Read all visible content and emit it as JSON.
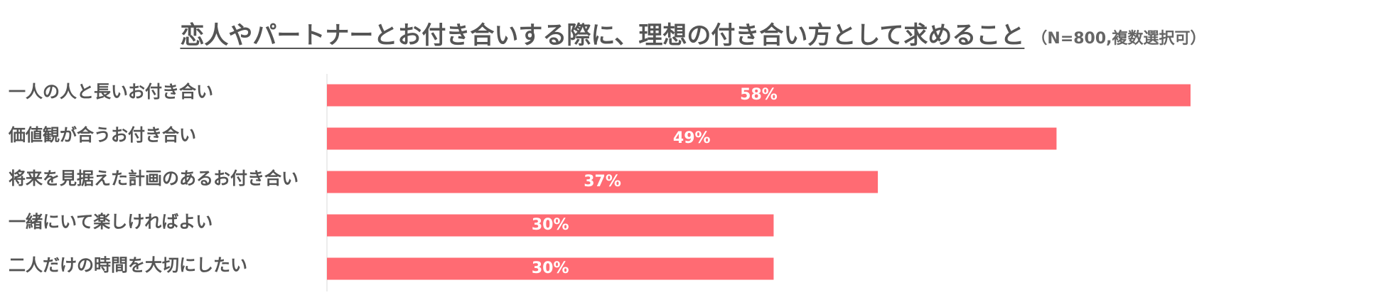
{
  "title": "恋人やパートナーとお付き合いする際に、理想の付き合い方として求めること",
  "note": "（N=800,複数選択可）",
  "colors": {
    "bar": "#ff6b73",
    "axis": "#d9d9d9",
    "label": "#555555"
  },
  "chart_data": {
    "type": "bar",
    "orientation": "horizontal",
    "title": "恋人やパートナーとお付き合いする際に、理想の付き合い方として求めること",
    "categories": [
      "一人の人と長いお付き合い",
      "価値観が合うお付き合い",
      "将来を見据えた計画のあるお付き合い",
      "一緒にいて楽しければよい",
      "二人だけの時間を大切にしたい"
    ],
    "values": [
      58,
      49,
      37,
      30,
      30
    ],
    "value_labels": [
      "58%",
      "49%",
      "37%",
      "30%",
      "30%"
    ],
    "xlim": [
      0,
      70
    ],
    "grid": false,
    "legend": "none"
  }
}
